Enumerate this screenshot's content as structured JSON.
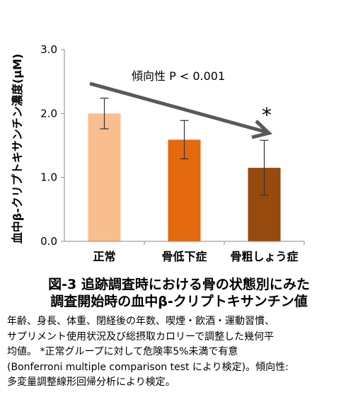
{
  "chart_data": {
    "type": "bar",
    "ylabel": "血中β-クリプトキサンチン濃度(μM)",
    "ylim": [
      0,
      3.0
    ],
    "yticks": [
      "0.0",
      "1.0",
      "2.0",
      "3.0"
    ],
    "categories": [
      "正常",
      "骨低下症",
      "骨粗しょう症"
    ],
    "values": [
      2.0,
      1.59,
      1.15
    ],
    "error": [
      0.24,
      0.3,
      0.43
    ],
    "colors": [
      "#F9BE8E",
      "#E5690F",
      "#964A0E"
    ],
    "trend_label": "傾向性 P < 0.001",
    "significance_mark": "*",
    "grid": false
  },
  "figure": {
    "title_line1": "図-3 追跡調査時における骨の状態別にみた",
    "title_line2": "調査開始時の血中β-クリプトキサンチン値"
  },
  "caption": {
    "lines": [
      "年齢、身長、体重、閉経後の年数、喫煙・飲酒・運動習慣、",
      "サプリメント使用状況及び総摂取カロリーで調整した幾何平",
      "均値。 *正常グループに対して危険率5%未満で有意",
      "(Bonferroni multiple comparison test により検定)。傾向性:",
      "多変量調整線形回帰分析により検定。"
    ]
  }
}
